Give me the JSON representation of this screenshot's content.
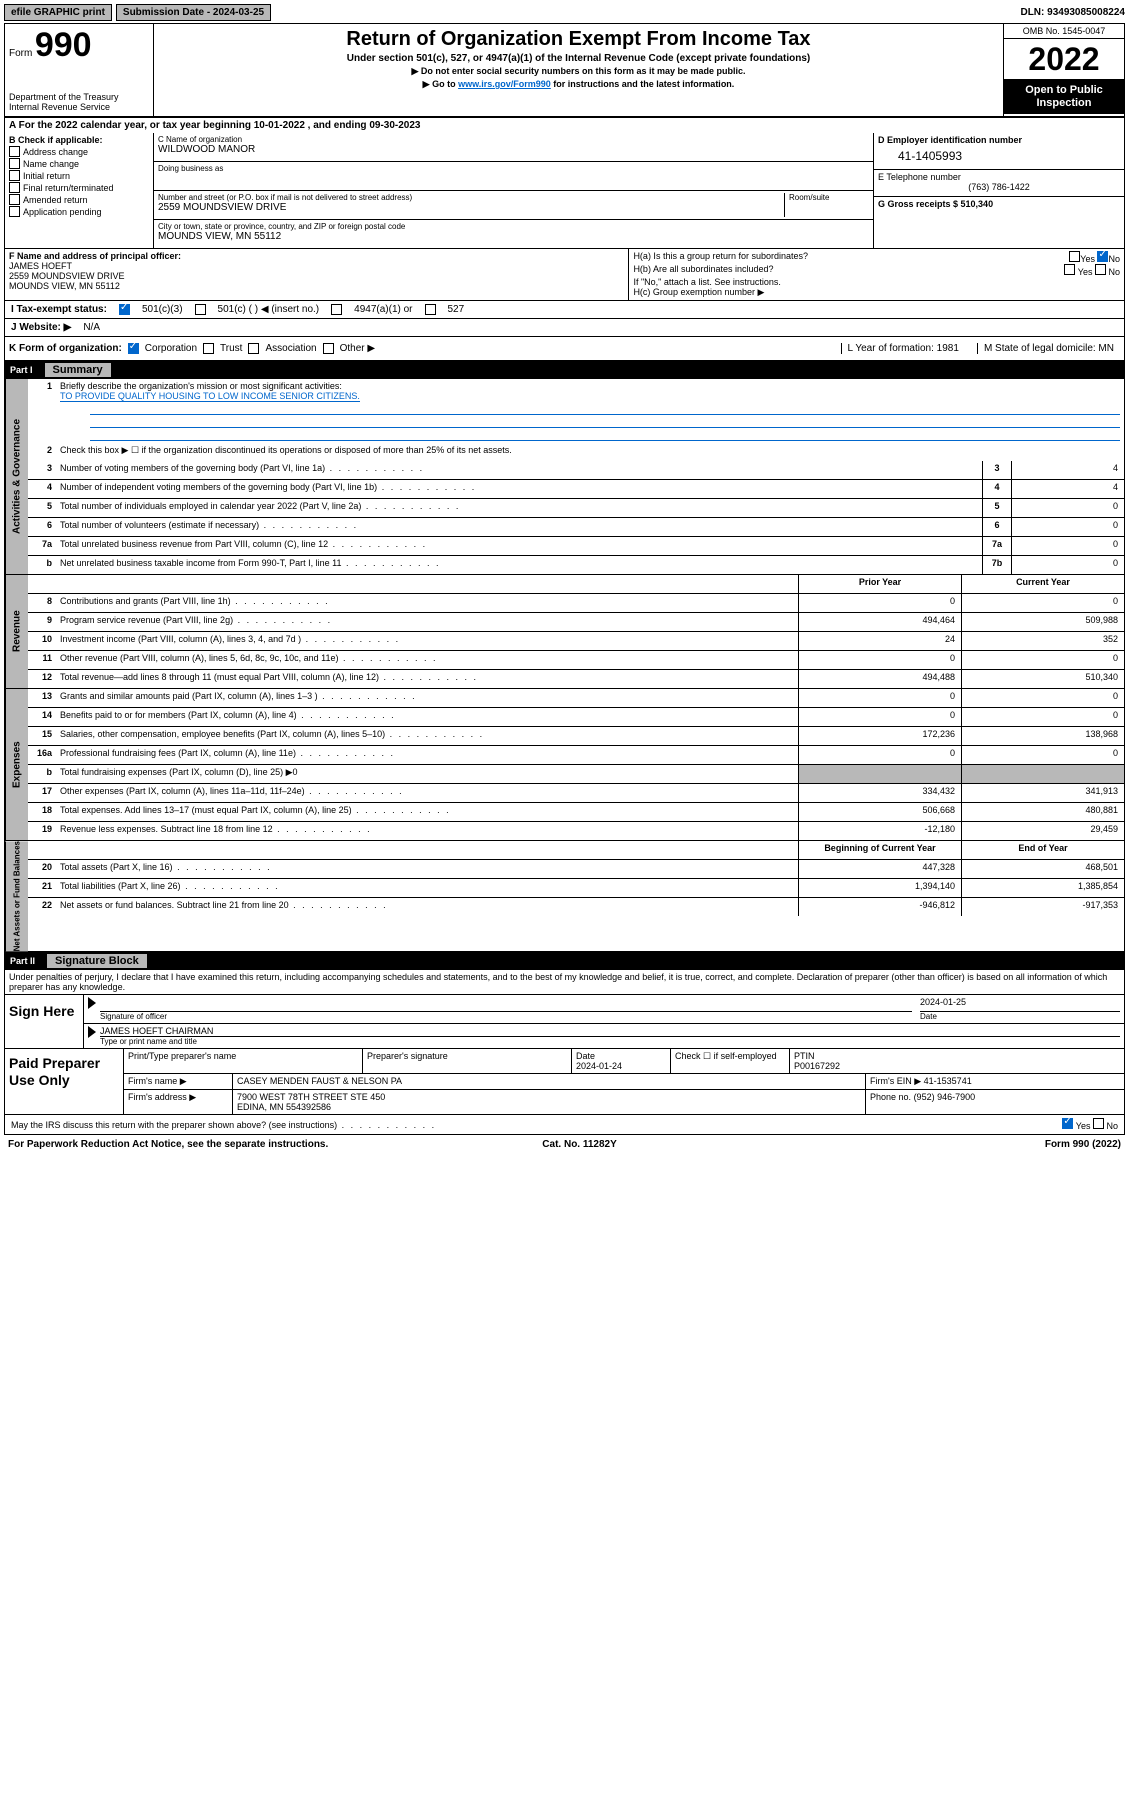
{
  "top": {
    "efile": "efile GRAPHIC print",
    "submission_label": "Submission Date - 2024-03-25",
    "dln": "DLN: 93493085008224"
  },
  "header": {
    "form_prefix": "Form",
    "form_num": "990",
    "dept": "Department of the Treasury Internal Revenue Service",
    "title": "Return of Organization Exempt From Income Tax",
    "sub1": "Under section 501(c), 527, or 4947(a)(1) of the Internal Revenue Code (except private foundations)",
    "sub2": "▶ Do not enter social security numbers on this form as it may be made public.",
    "sub3_pre": "▶ Go to ",
    "sub3_link": "www.irs.gov/Form990",
    "sub3_post": " for instructions and the latest information.",
    "omb": "OMB No. 1545-0047",
    "year": "2022",
    "open": "Open to Public Inspection"
  },
  "rowA": "A For the 2022 calendar year, or tax year beginning 10-01-2022    , and ending 09-30-2023",
  "colB": {
    "title": "B Check if applicable:",
    "opts": [
      "Address change",
      "Name change",
      "Initial return",
      "Final return/terminated",
      "Amended return",
      "Application pending"
    ]
  },
  "colC": {
    "name_label": "C Name of organization",
    "name": "WILDWOOD MANOR",
    "dba_label": "Doing business as",
    "addr_label": "Number and street (or P.O. box if mail is not delivered to street address)",
    "room_label": "Room/suite",
    "addr": "2559 MOUNDSVIEW DRIVE",
    "city_label": "City or town, state or province, country, and ZIP or foreign postal code",
    "city": "MOUNDS VIEW, MN  55112"
  },
  "colD": {
    "ein_label": "D Employer identification number",
    "ein": "41-1405993",
    "phone_label": "E Telephone number",
    "phone": "(763) 786-1422",
    "gross_label": "G Gross receipts $ 510,340"
  },
  "rowF": {
    "label": "F Name and address of principal officer:",
    "name": "JAMES HOEFT",
    "addr1": "2559 MOUNDSVIEW DRIVE",
    "addr2": "MOUNDS VIEW, MN  55112"
  },
  "rowH": {
    "a": "H(a)  Is this a group return for subordinates?",
    "a_yes": "Yes",
    "a_no": "No",
    "b": "H(b)  Are all subordinates included?",
    "b_note": "If \"No,\" attach a list. See instructions.",
    "c": "H(c)  Group exemption number ▶"
  },
  "rowI": {
    "label": "I   Tax-exempt status:",
    "o1": "501(c)(3)",
    "o2": "501(c) (   ) ◀ (insert no.)",
    "o3": "4947(a)(1) or",
    "o4": "527"
  },
  "rowJ": {
    "label": "J   Website: ▶",
    "val": "N/A"
  },
  "rowK": {
    "label": "K Form of organization:",
    "o1": "Corporation",
    "o2": "Trust",
    "o3": "Association",
    "o4": "Other ▶",
    "l": "L Year of formation: 1981",
    "m": "M State of legal domicile: MN"
  },
  "partI": {
    "hdr": "Part I",
    "sub": "Summary"
  },
  "vtabs": {
    "gov": "Activities & Governance",
    "rev": "Revenue",
    "exp": "Expenses",
    "net": "Net Assets or Fund Balances"
  },
  "summary": {
    "l1": "Briefly describe the organization's mission or most significant activities:",
    "mission": "TO PROVIDE QUALITY HOUSING TO LOW INCOME SENIOR CITIZENS.",
    "l2": "Check this box ▶ ☐  if the organization discontinued its operations or disposed of more than 25% of its net assets.",
    "rows_gov": [
      {
        "n": "3",
        "d": "Number of voting members of the governing body (Part VI, line 1a)",
        "b": "3",
        "v": "4"
      },
      {
        "n": "4",
        "d": "Number of independent voting members of the governing body (Part VI, line 1b)",
        "b": "4",
        "v": "4"
      },
      {
        "n": "5",
        "d": "Total number of individuals employed in calendar year 2022 (Part V, line 2a)",
        "b": "5",
        "v": "0"
      },
      {
        "n": "6",
        "d": "Total number of volunteers (estimate if necessary)",
        "b": "6",
        "v": "0"
      },
      {
        "n": "7a",
        "d": "Total unrelated business revenue from Part VIII, column (C), line 12",
        "b": "7a",
        "v": "0"
      },
      {
        "n": "b",
        "d": "Net unrelated business taxable income from Form 990-T, Part I, line 11",
        "b": "7b",
        "v": "0"
      }
    ],
    "hdr_prior": "Prior Year",
    "hdr_curr": "Current Year",
    "rows_rev": [
      {
        "n": "8",
        "d": "Contributions and grants (Part VIII, line 1h)",
        "p": "0",
        "c": "0"
      },
      {
        "n": "9",
        "d": "Program service revenue (Part VIII, line 2g)",
        "p": "494,464",
        "c": "509,988"
      },
      {
        "n": "10",
        "d": "Investment income (Part VIII, column (A), lines 3, 4, and 7d )",
        "p": "24",
        "c": "352"
      },
      {
        "n": "11",
        "d": "Other revenue (Part VIII, column (A), lines 5, 6d, 8c, 9c, 10c, and 11e)",
        "p": "0",
        "c": "0"
      },
      {
        "n": "12",
        "d": "Total revenue—add lines 8 through 11 (must equal Part VIII, column (A), line 12)",
        "p": "494,488",
        "c": "510,340"
      }
    ],
    "rows_exp": [
      {
        "n": "13",
        "d": "Grants and similar amounts paid (Part IX, column (A), lines 1–3 )",
        "p": "0",
        "c": "0"
      },
      {
        "n": "14",
        "d": "Benefits paid to or for members (Part IX, column (A), line 4)",
        "p": "0",
        "c": "0"
      },
      {
        "n": "15",
        "d": "Salaries, other compensation, employee benefits (Part IX, column (A), lines 5–10)",
        "p": "172,236",
        "c": "138,968"
      },
      {
        "n": "16a",
        "d": "Professional fundraising fees (Part IX, column (A), line 11e)",
        "p": "0",
        "c": "0"
      },
      {
        "n": "b",
        "d": "Total fundraising expenses (Part IX, column (D), line 25) ▶0",
        "p": "",
        "c": "",
        "noval": true
      },
      {
        "n": "17",
        "d": "Other expenses (Part IX, column (A), lines 11a–11d, 11f–24e)",
        "p": "334,432",
        "c": "341,913"
      },
      {
        "n": "18",
        "d": "Total expenses. Add lines 13–17 (must equal Part IX, column (A), line 25)",
        "p": "506,668",
        "c": "480,881"
      },
      {
        "n": "19",
        "d": "Revenue less expenses. Subtract line 18 from line 12",
        "p": "-12,180",
        "c": "29,459"
      }
    ],
    "hdr_beg": "Beginning of Current Year",
    "hdr_end": "End of Year",
    "rows_net": [
      {
        "n": "20",
        "d": "Total assets (Part X, line 16)",
        "p": "447,328",
        "c": "468,501"
      },
      {
        "n": "21",
        "d": "Total liabilities (Part X, line 26)",
        "p": "1,394,140",
        "c": "1,385,854"
      },
      {
        "n": "22",
        "d": "Net assets or fund balances. Subtract line 21 from line 20",
        "p": "-946,812",
        "c": "-917,353"
      }
    ]
  },
  "partII": {
    "hdr": "Part II",
    "sub": "Signature Block"
  },
  "sig": {
    "declare": "Under penalties of perjury, I declare that I have examined this return, including accompanying schedules and statements, and to the best of my knowledge and belief, it is true, correct, and complete. Declaration of preparer (other than officer) is based on all information of which preparer has any knowledge.",
    "sign_here": "Sign Here",
    "sig_officer": "Signature of officer",
    "sig_date": "2024-01-25",
    "date_lbl": "Date",
    "name": "JAMES HOEFT CHAIRMAN",
    "name_lbl": "Type or print name and title"
  },
  "paid": {
    "title": "Paid Preparer Use Only",
    "h1": "Print/Type preparer's name",
    "h2": "Preparer's signature",
    "h3": "Date",
    "h3v": "2024-01-24",
    "h4": "Check ☐ if self-employed",
    "h5": "PTIN",
    "h5v": "P00167292",
    "firm_lbl": "Firm's name    ▶",
    "firm": "CASEY MENDEN FAUST & NELSON PA",
    "ein_lbl": "Firm's EIN ▶",
    "ein": "41-1535741",
    "addr_lbl": "Firm's address ▶",
    "addr1": "7900 WEST 78TH STREET STE 450",
    "addr2": "EDINA, MN  554392586",
    "phone_lbl": "Phone no.",
    "phone": "(952) 946-7900"
  },
  "footer": {
    "discuss": "May the IRS discuss this return with the preparer shown above? (see instructions)",
    "yes": "Yes",
    "no": "No",
    "paperwork": "For Paperwork Reduction Act Notice, see the separate instructions.",
    "cat": "Cat. No. 11282Y",
    "form": "Form 990 (2022)"
  }
}
